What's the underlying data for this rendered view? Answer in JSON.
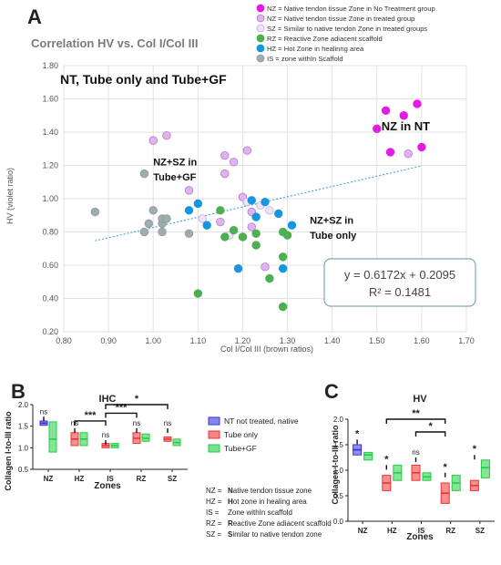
{
  "panel_labels": {
    "a": "A",
    "b": "B",
    "c": "C"
  },
  "colors": {
    "native_nt": "#e41be4",
    "native_treated": "#e0b3ef",
    "similar": "#f0e2f8",
    "reactive": "#4caf50",
    "hot": "#1596e0",
    "within": "#9eadb0",
    "nt_bar": "#3333dd",
    "tube_only": "#ee3333",
    "tube_gf": "#22cc44",
    "trendline": "#3ba6d6"
  },
  "chart_data": [
    {
      "id": "scatter",
      "type": "scatter",
      "title": "Correlation HV vs. Col I/Col III",
      "subtitle": "NT, Tube only and Tube+GF",
      "xlabel": "Col I/Col III (brown ratios)",
      "ylabel": "HV (violet ratio)",
      "xlim": [
        0.8,
        1.7
      ],
      "ylim": [
        0.2,
        1.8
      ],
      "xticks": [
        "0.80",
        "0.90",
        "1.00",
        "1.10",
        "1.20",
        "1.30",
        "1.40",
        "1.50",
        "1.60",
        "1.70"
      ],
      "yticks": [
        "0.20",
        "0.40",
        "0.60",
        "0.80",
        "1.00",
        "1.20",
        "1.40",
        "1.60",
        "1.80"
      ],
      "grid": true,
      "legend_position": "top-right",
      "legend": [
        {
          "label": "NZ = Native tendon tissue Zone in No Treatment group",
          "color": "#e41be4",
          "stroke": "#e41be4"
        },
        {
          "label": "NZ = Native tendon tissue Zone in treated group",
          "color": "#e0b3ef",
          "stroke": "#b07fc6"
        },
        {
          "label": "SZ = Similar to native tendon Zone in treated groups",
          "color": "#f0e2f8",
          "stroke": "#c9a8dc"
        },
        {
          "label": "RZ = Reactive Zone adiacent scaffold",
          "color": "#4caf50",
          "stroke": "#4caf50"
        },
        {
          "label": "HZ = Hot Zone in healinng area",
          "color": "#1596e0",
          "stroke": "#1596e0"
        },
        {
          "label": "IS = zone withIn Scaffold",
          "color": "#9eadb0",
          "stroke": "#8a9a9d"
        }
      ],
      "annotations": [
        {
          "text": "NZ in NT",
          "x": 1.51,
          "y": 1.41
        },
        {
          "text": "NZ+SZ in",
          "x": 1.0,
          "y": 1.2
        },
        {
          "text": "Tube+GF",
          "x": 1.0,
          "y": 1.11
        },
        {
          "text": "NZ+SZ in",
          "x": 1.35,
          "y": 0.85
        },
        {
          "text": "Tube only",
          "x": 1.35,
          "y": 0.76
        }
      ],
      "equation": {
        "line1": "y = 0.6172x + 0.2095",
        "line2": "R² = 0.1481"
      },
      "trendline": {
        "slope": 0.6172,
        "intercept": 0.2095,
        "x_range": [
          0.87,
          1.6
        ]
      },
      "series": [
        {
          "name": "NZ = Native tendon tissue Zone in No Treatment group",
          "color": "#e41be4",
          "stroke": "#e41be4",
          "points": [
            [
              1.5,
              1.42
            ],
            [
              1.52,
              1.53
            ],
            [
              1.53,
              1.28
            ],
            [
              1.56,
              1.5
            ],
            [
              1.59,
              1.57
            ],
            [
              1.6,
              1.31
            ]
          ]
        },
        {
          "name": "NZ = Native tendon tissue Zone in treated group",
          "color": "#e0b3ef",
          "stroke": "#b07fc6",
          "points": [
            [
              1.0,
              1.35
            ],
            [
              1.03,
              1.38
            ],
            [
              1.16,
              1.26
            ],
            [
              1.16,
              1.15
            ],
            [
              1.18,
              1.22
            ],
            [
              1.21,
              1.29
            ],
            [
              1.2,
              1.01
            ],
            [
              1.08,
              1.05
            ],
            [
              1.15,
              0.86
            ],
            [
              1.22,
              0.92
            ],
            [
              1.25,
              0.59
            ],
            [
              1.22,
              0.83
            ],
            [
              1.57,
              1.27
            ]
          ]
        },
        {
          "name": "SZ = Similar to native tendon Zone in treated groups",
          "color": "#f0e2f8",
          "stroke": "#c9a8dc",
          "points": [
            [
              1.11,
              0.88
            ],
            [
              1.24,
              0.96
            ],
            [
              1.26,
              0.93
            ],
            [
              1.17,
              0.78
            ],
            [
              1.21,
              0.98
            ]
          ]
        },
        {
          "name": "RZ = Reactive Zone adiacent scaffold",
          "color": "#4caf50",
          "stroke": "#4caf50",
          "points": [
            [
              1.15,
              0.93
            ],
            [
              1.16,
              0.77
            ],
            [
              1.18,
              0.81
            ],
            [
              1.2,
              0.77
            ],
            [
              1.23,
              0.79
            ],
            [
              1.23,
              0.72
            ],
            [
              1.26,
              0.52
            ],
            [
              1.29,
              0.8
            ],
            [
              1.3,
              0.78
            ],
            [
              1.29,
              0.65
            ],
            [
              1.29,
              0.35
            ],
            [
              1.1,
              0.43
            ]
          ]
        },
        {
          "name": "HZ = Hot Zone in healinng area",
          "color": "#1596e0",
          "stroke": "#1596e0",
          "points": [
            [
              1.08,
              0.93
            ],
            [
              1.1,
              0.97
            ],
            [
              1.12,
              0.84
            ],
            [
              1.19,
              0.58
            ],
            [
              1.22,
              0.99
            ],
            [
              1.23,
              0.89
            ],
            [
              1.25,
              0.98
            ],
            [
              1.28,
              0.91
            ],
            [
              1.31,
              0.84
            ],
            [
              1.29,
              0.58
            ]
          ]
        },
        {
          "name": "IS = zone withIn Scaffold",
          "color": "#9eadb0",
          "stroke": "#8a9a9d",
          "points": [
            [
              0.87,
              0.92
            ],
            [
              0.98,
              1.15
            ],
            [
              0.98,
              0.8
            ],
            [
              0.99,
              0.85
            ],
            [
              1.0,
              0.93
            ],
            [
              1.02,
              0.85
            ],
            [
              1.02,
              0.88
            ],
            [
              1.03,
              0.88
            ],
            [
              1.02,
              0.8
            ],
            [
              1.08,
              0.79
            ]
          ]
        }
      ]
    },
    {
      "id": "ihc",
      "type": "box",
      "title": "IHC",
      "xlabel": "Zones",
      "ylabel": "Collagen I-to-III ratio",
      "ylim": [
        0.5,
        2.0
      ],
      "yticks": [
        "0.5",
        "1.0",
        "1.5",
        "2.0"
      ],
      "categories": [
        "NZ",
        "HZ",
        "IS",
        "RZ",
        "SZ"
      ],
      "legend_position": "right",
      "series": [
        {
          "name": "NT not treated, native",
          "color": "#3333dd",
          "boxes": [
            {
              "cat": 0,
              "low": 1.52,
              "high": 1.62,
              "median": 1.57
            }
          ]
        },
        {
          "name": "Tube only",
          "color": "#ee3333",
          "boxes": [
            {
              "cat": 1,
              "low": 1.05,
              "high": 1.35,
              "median": 1.2
            },
            {
              "cat": 2,
              "low": 1.0,
              "high": 1.1,
              "median": 1.05
            },
            {
              "cat": 3,
              "low": 1.1,
              "high": 1.35,
              "median": 1.22
            },
            {
              "cat": 4,
              "low": 1.15,
              "high": 1.25,
              "median": 1.2
            }
          ]
        },
        {
          "name": "Tube+GF",
          "color": "#22cc44",
          "boxes": [
            {
              "cat": 0,
              "low": 0.9,
              "high": 1.6,
              "median": 1.2
            },
            {
              "cat": 1,
              "low": 1.05,
              "high": 1.35,
              "median": 1.2
            },
            {
              "cat": 2,
              "low": 1.0,
              "high": 1.1,
              "median": 1.05
            },
            {
              "cat": 3,
              "low": 1.15,
              "high": 1.32,
              "median": 1.22
            },
            {
              "cat": 4,
              "low": 1.05,
              "high": 1.2,
              "median": 1.12
            }
          ]
        }
      ],
      "significance": [
        {
          "from": [
            0,
            0
          ],
          "to": [
            0,
            1
          ],
          "level": 1.72,
          "label": "ns"
        },
        {
          "from": [
            1,
            0
          ],
          "to": [
            1,
            1
          ],
          "level": 1.45,
          "label": "ns"
        },
        {
          "from": [
            2,
            0
          ],
          "to": [
            2,
            1
          ],
          "level": 1.18,
          "label": "ns"
        },
        {
          "from": [
            3,
            0
          ],
          "to": [
            3,
            1
          ],
          "level": 1.45,
          "label": "ns"
        },
        {
          "from": [
            4,
            0
          ],
          "to": [
            4,
            1
          ],
          "level": 1.45,
          "label": "ns"
        },
        {
          "from": [
            1,
            0
          ],
          "to": [
            2,
            0
          ],
          "level": 1.62,
          "label": "***"
        },
        {
          "from": [
            2,
            1
          ],
          "to": [
            3,
            1
          ],
          "level": 1.8,
          "label": "***"
        },
        {
          "from": [
            2,
            1
          ],
          "to": [
            4,
            1
          ],
          "level": 2.0,
          "label": "*"
        }
      ]
    },
    {
      "id": "hv",
      "type": "box",
      "title": "HV",
      "xlabel": "Zones",
      "ylabel": "Collagen I-to-III ratio",
      "ylim": [
        0.0,
        2.0
      ],
      "yticks": [
        "0.0",
        "0.5",
        "1.0",
        "1.5",
        "2.0"
      ],
      "categories": [
        "NZ",
        "HZ",
        "IS",
        "RZ",
        "SZ"
      ],
      "series": [
        {
          "name": "NT not treated, native",
          "color": "#3333dd",
          "boxes": [
            {
              "cat": 0,
              "low": 1.3,
              "high": 1.5,
              "median": 1.4
            }
          ]
        },
        {
          "name": "Tube only",
          "color": "#ee3333",
          "boxes": [
            {
              "cat": 1,
              "low": 0.6,
              "high": 0.9,
              "median": 0.75
            },
            {
              "cat": 2,
              "low": 0.8,
              "high": 1.1,
              "median": 0.95
            },
            {
              "cat": 3,
              "low": 0.35,
              "high": 0.75,
              "median": 0.55
            },
            {
              "cat": 4,
              "low": 0.6,
              "high": 0.8,
              "median": 0.7
            }
          ]
        },
        {
          "name": "Tube+GF",
          "color": "#22cc44",
          "boxes": [
            {
              "cat": 0,
              "low": 1.2,
              "high": 1.35,
              "median": 1.3
            },
            {
              "cat": 1,
              "low": 0.8,
              "high": 1.1,
              "median": 0.95
            },
            {
              "cat": 2,
              "low": 0.8,
              "high": 0.95,
              "median": 0.87
            },
            {
              "cat": 3,
              "low": 0.6,
              "high": 0.9,
              "median": 0.75
            },
            {
              "cat": 4,
              "low": 0.85,
              "high": 1.2,
              "median": 1.05
            }
          ]
        }
      ],
      "significance": [
        {
          "from": [
            0,
            0
          ],
          "to": [
            0,
            1
          ],
          "level": 1.6,
          "label": "*"
        },
        {
          "from": [
            1,
            0
          ],
          "to": [
            1,
            1
          ],
          "level": 1.1,
          "label": "*"
        },
        {
          "from": [
            2,
            0
          ],
          "to": [
            2,
            1
          ],
          "level": 1.25,
          "label": "ns"
        },
        {
          "from": [
            3,
            0
          ],
          "to": [
            3,
            1
          ],
          "level": 0.95,
          "label": "*"
        },
        {
          "from": [
            4,
            0
          ],
          "to": [
            4,
            1
          ],
          "level": 1.3,
          "label": "*"
        },
        {
          "from": [
            1,
            0
          ],
          "to": [
            3,
            0
          ],
          "level": 2.0,
          "label": "**"
        },
        {
          "from": [
            2,
            1
          ],
          "to": [
            3,
            1
          ],
          "level": 1.75,
          "label": "*"
        }
      ]
    }
  ],
  "zone_key": [
    {
      "abbr": "NZ =",
      "bold": "N",
      "rest": "ative tendon tissue zone"
    },
    {
      "abbr": "HZ =",
      "bold": "H",
      "rest": "ot zone in healing area"
    },
    {
      "abbr": "IS =",
      "bold": "",
      "rest": "Zone withIn scaffold"
    },
    {
      "abbr": "RZ =",
      "bold": "R",
      "rest": "eactive Zone adiacent scaffold"
    },
    {
      "abbr": "SZ =",
      "bold": "S",
      "rest": "imilar to native tendon zone"
    }
  ]
}
